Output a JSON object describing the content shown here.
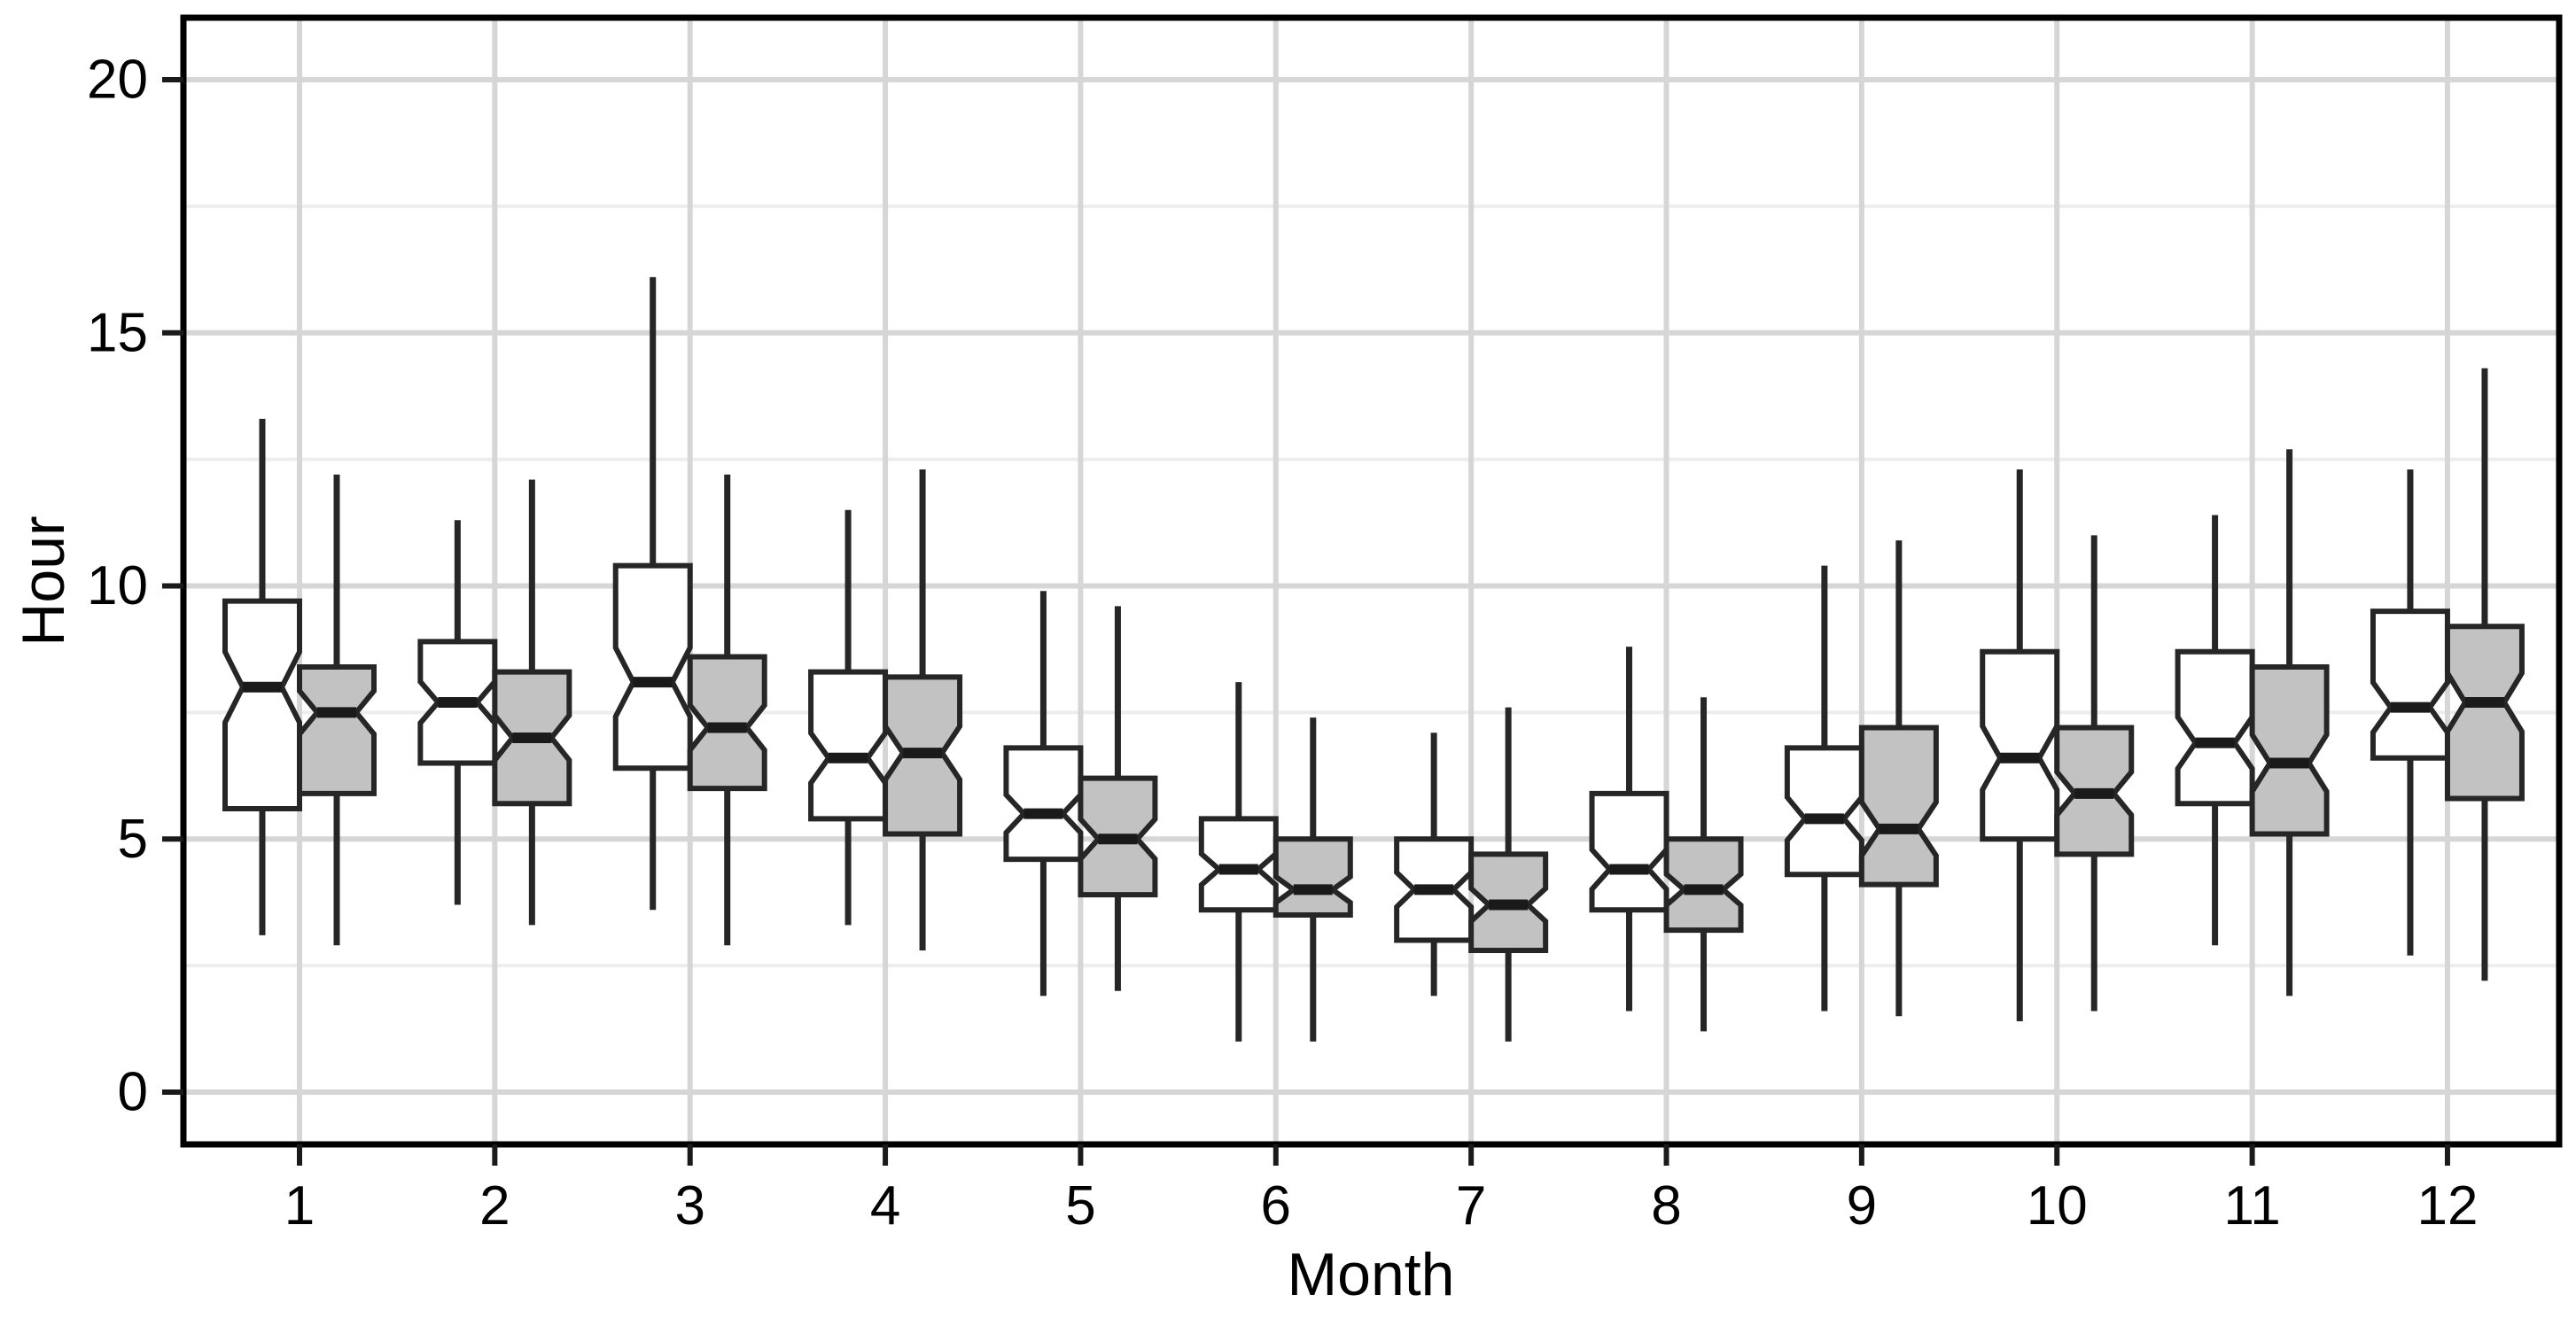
{
  "chart_data": {
    "type": "boxplot",
    "title": "",
    "xlabel": "Month",
    "ylabel": "Hour",
    "categories": [
      1,
      2,
      3,
      4,
      5,
      6,
      7,
      8,
      9,
      10,
      11,
      12
    ],
    "y_ticks": [
      0,
      5,
      10,
      15,
      20
    ],
    "y_minor_ticks": [
      2.5,
      7.5,
      12.5,
      17.5
    ],
    "ylim": [
      -1.0,
      21.2
    ],
    "notched": true,
    "grid": true,
    "legend_position": "none",
    "series": [
      {
        "name": "white",
        "fill": "#ffffff",
        "boxes": [
          {
            "month": 1,
            "low": 3.1,
            "q1": 5.6,
            "median": 8.0,
            "q3": 9.7,
            "high": 13.3
          },
          {
            "month": 2,
            "low": 3.7,
            "q1": 6.5,
            "median": 7.7,
            "q3": 8.9,
            "high": 11.3
          },
          {
            "month": 3,
            "low": 3.6,
            "q1": 6.4,
            "median": 8.1,
            "q3": 10.4,
            "high": 16.1
          },
          {
            "month": 4,
            "low": 3.3,
            "q1": 5.4,
            "median": 6.6,
            "q3": 8.3,
            "high": 11.5
          },
          {
            "month": 5,
            "low": 1.9,
            "q1": 4.6,
            "median": 5.5,
            "q3": 6.8,
            "high": 9.9
          },
          {
            "month": 6,
            "low": 1.0,
            "q1": 3.6,
            "median": 4.4,
            "q3": 5.4,
            "high": 8.1
          },
          {
            "month": 7,
            "low": 1.9,
            "q1": 3.0,
            "median": 4.0,
            "q3": 5.0,
            "high": 7.1
          },
          {
            "month": 8,
            "low": 1.6,
            "q1": 3.6,
            "median": 4.4,
            "q3": 5.9,
            "high": 8.8
          },
          {
            "month": 9,
            "low": 1.6,
            "q1": 4.3,
            "median": 5.4,
            "q3": 6.8,
            "high": 10.4
          },
          {
            "month": 10,
            "low": 1.4,
            "q1": 5.0,
            "median": 6.6,
            "q3": 8.7,
            "high": 12.3
          },
          {
            "month": 11,
            "low": 2.9,
            "q1": 5.7,
            "median": 6.9,
            "q3": 8.7,
            "high": 11.4
          },
          {
            "month": 12,
            "low": 2.7,
            "q1": 6.6,
            "median": 7.6,
            "q3": 9.5,
            "high": 12.3
          }
        ]
      },
      {
        "name": "gray",
        "fill": "#c2c2c2",
        "boxes": [
          {
            "month": 1,
            "low": 2.9,
            "q1": 5.9,
            "median": 7.5,
            "q3": 8.4,
            "high": 12.2
          },
          {
            "month": 2,
            "low": 3.3,
            "q1": 5.7,
            "median": 7.0,
            "q3": 8.3,
            "high": 12.1
          },
          {
            "month": 3,
            "low": 2.9,
            "q1": 6.0,
            "median": 7.2,
            "q3": 8.6,
            "high": 12.2
          },
          {
            "month": 4,
            "low": 2.8,
            "q1": 5.1,
            "median": 6.7,
            "q3": 8.2,
            "high": 12.3
          },
          {
            "month": 5,
            "low": 2.0,
            "q1": 3.9,
            "median": 5.0,
            "q3": 6.2,
            "high": 9.6
          },
          {
            "month": 6,
            "low": 1.0,
            "q1": 3.5,
            "median": 4.0,
            "q3": 5.0,
            "high": 7.4
          },
          {
            "month": 7,
            "low": 1.0,
            "q1": 2.8,
            "median": 3.7,
            "q3": 4.7,
            "high": 7.6
          },
          {
            "month": 8,
            "low": 1.2,
            "q1": 3.2,
            "median": 4.0,
            "q3": 5.0,
            "high": 7.8
          },
          {
            "month": 9,
            "low": 1.5,
            "q1": 4.1,
            "median": 5.2,
            "q3": 7.2,
            "high": 10.9
          },
          {
            "month": 10,
            "low": 1.6,
            "q1": 4.7,
            "median": 5.9,
            "q3": 7.2,
            "high": 11.0
          },
          {
            "month": 11,
            "low": 1.9,
            "q1": 5.1,
            "median": 6.5,
            "q3": 8.4,
            "high": 12.7
          },
          {
            "month": 12,
            "low": 2.2,
            "q1": 5.8,
            "median": 7.7,
            "q3": 9.2,
            "high": 14.3
          }
        ]
      }
    ]
  },
  "style": {
    "box_stroke": "#262626",
    "whisker_stroke": "#262626",
    "median_stroke": "#1a1a1a",
    "grid_major": "#d6d6d6",
    "grid_minor": "#ededed",
    "panel_border": "#000000",
    "panel_bg": "#ffffff",
    "text_color": "#000000",
    "tick_color": "#1a1a1a"
  }
}
